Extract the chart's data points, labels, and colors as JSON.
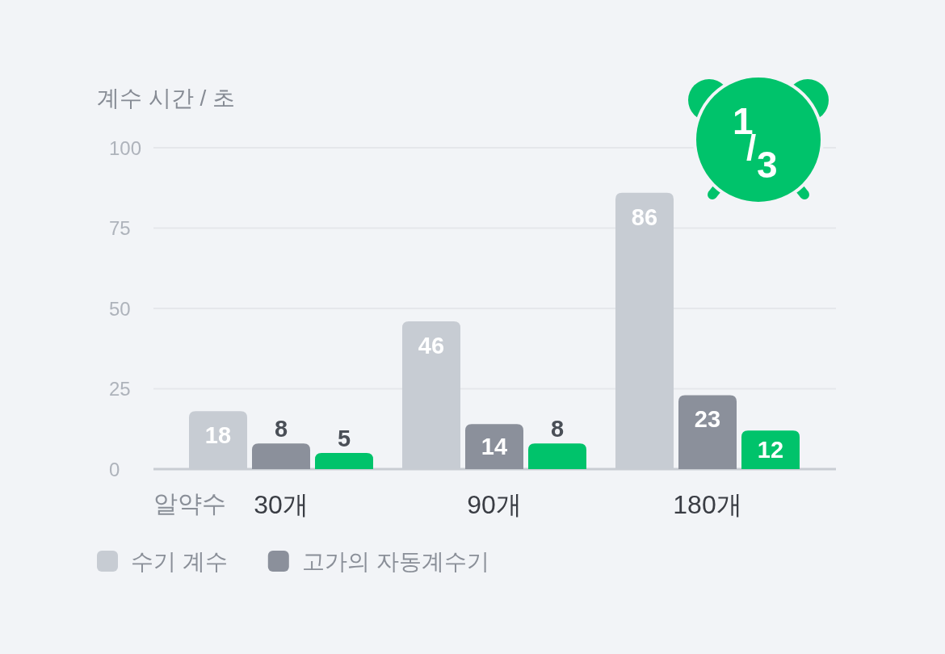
{
  "chart_data": {
    "type": "bar",
    "ylabel": "계수 시간 / 초",
    "xlabel": "알약수",
    "categories": [
      "30개",
      "90개",
      "180개"
    ],
    "series": [
      {
        "name": "수기 계수",
        "color": "#c7ccd3",
        "values": [
          18,
          46,
          86
        ]
      },
      {
        "name": "고가의 자동계수기",
        "color": "#8b909b",
        "values": [
          8,
          14,
          23
        ]
      },
      {
        "color": "#00c36b",
        "values": [
          5,
          8,
          12
        ]
      }
    ],
    "ylim": [
      0,
      100
    ],
    "yticks": [
      0,
      25,
      50,
      75,
      100
    ],
    "grid": "y",
    "legend": "bottom",
    "data_labels": true,
    "annotations": [
      "1/3"
    ]
  }
}
